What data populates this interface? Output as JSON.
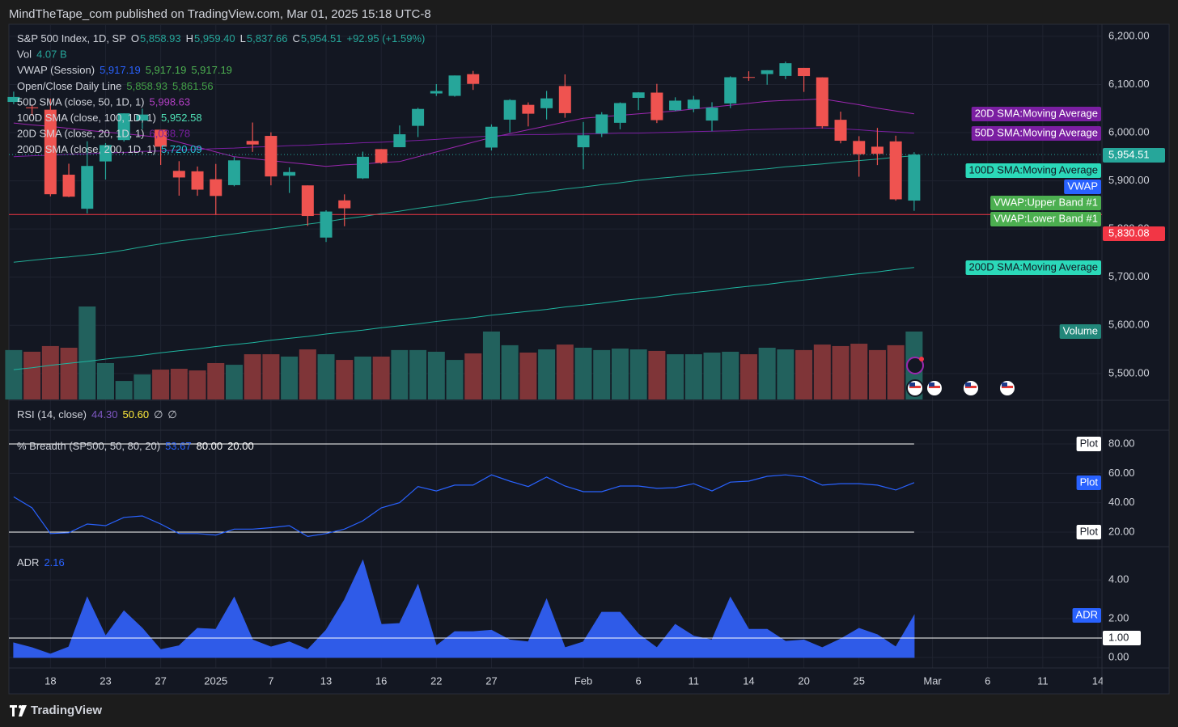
{
  "header": {
    "attribution": "MindTheTape_com published on TradingView.com, Mar 01, 2025 15:18 UTC-8"
  },
  "footer": {
    "brand": "TradingView"
  },
  "rsi": {
    "legend": [
      {
        "label": "RSI (14, close)",
        "values": [
          {
            "text": "44.30",
            "color": "#7e57c2"
          },
          {
            "text": "50.60",
            "color": "#ffeb3b"
          },
          {
            "text": "∅",
            "color": "#d1d4dc"
          },
          {
            "text": "∅",
            "color": "#d1d4dc"
          }
        ]
      }
    ]
  },
  "chart_data": [
    {
      "type": "candlestick",
      "legend": [
        {
          "label": "S&P 500 Index, 1D, SP",
          "values": [
            {
              "prefix": "O",
              "text": "5,858.93",
              "color": "#26a69a"
            },
            {
              "prefix": "H",
              "text": "5,959.40",
              "color": "#26a69a"
            },
            {
              "prefix": "L",
              "text": "5,837.66",
              "color": "#26a69a"
            },
            {
              "prefix": "C",
              "text": "5,954.51",
              "color": "#26a69a"
            },
            {
              "text": "+92.95 (+1.59%)",
              "color": "#26a69a"
            }
          ]
        },
        {
          "label": "Vol",
          "values": [
            {
              "text": "4.07 B",
              "color": "#26a69a"
            }
          ]
        },
        {
          "label": "VWAP (Session)",
          "values": [
            {
              "text": "5,917.19",
              "color": "#2962ff"
            },
            {
              "text": "5,917.19",
              "color": "#4caf50"
            },
            {
              "text": "5,917.19",
              "color": "#4caf50"
            }
          ]
        },
        {
          "label": "Open/Close Daily Line",
          "values": [
            {
              "text": "5,858.93",
              "color": "#43a047"
            },
            {
              "text": "5,861.56",
              "color": "#43a047"
            }
          ]
        },
        {
          "label": "50D SMA (close, 50, 1D, 1)",
          "values": [
            {
              "text": "5,998.63",
              "color": "#b23fc4"
            }
          ]
        },
        {
          "label": "100D SMA (close, 100, 1D, 1)",
          "values": [
            {
              "text": "5,952.58",
              "color": "#4fe0b6"
            }
          ]
        },
        {
          "label": "20D SMA (close, 20, 1D, 1)",
          "values": [
            {
              "text": "6,038.78",
              "color": "#7b1fa2"
            }
          ]
        },
        {
          "label": "200D SMA (close, 200, 1D, 1)",
          "values": [
            {
              "text": "5,720.09",
              "color": "#26c6da"
            }
          ]
        }
      ],
      "xlim": [
        -0.26,
        59.22
      ],
      "xticks": [
        {
          "value": 2,
          "label": "18"
        },
        {
          "value": 5,
          "label": "23"
        },
        {
          "value": 8,
          "label": "27"
        },
        {
          "value": 11,
          "label": "2025"
        },
        {
          "value": 14,
          "label": "7"
        },
        {
          "value": 17,
          "label": "13"
        },
        {
          "value": 20,
          "label": "16"
        },
        {
          "value": 23,
          "label": "22"
        },
        {
          "value": 26,
          "label": "27"
        },
        {
          "value": 31,
          "label": "Feb"
        },
        {
          "value": 34,
          "label": "6"
        },
        {
          "value": 37,
          "label": "11"
        },
        {
          "value": 40,
          "label": "14"
        },
        {
          "value": 43,
          "label": "20"
        },
        {
          "value": 46,
          "label": "25"
        },
        {
          "value": 50,
          "label": "Mar"
        },
        {
          "value": 53,
          "label": "6"
        },
        {
          "value": 56,
          "label": "11"
        },
        {
          "value": 59,
          "label": "14"
        }
      ],
      "ylim": [
        5446,
        6220
      ],
      "yticks": [
        {
          "value": 5500,
          "label": "5,500.00"
        },
        {
          "value": 5600,
          "label": "5,600.00"
        },
        {
          "value": 5700,
          "label": "5,700.00"
        },
        {
          "value": 5800,
          "label": "5,800.00"
        },
        {
          "value": 5900,
          "label": "5,900.00"
        },
        {
          "value": 6000,
          "label": "6,000.00"
        },
        {
          "value": 6100,
          "label": "6,100.00"
        },
        {
          "value": 6200,
          "label": "6,200.00"
        }
      ],
      "grid": true,
      "up_color": "#26a69a",
      "down_color": "#ef5350",
      "open": [
        6063.79,
        6052.55,
        6047.65,
        5912.71,
        5842.0,
        5940.25,
        5984.63,
        6024.97,
        6006.17,
        5920.67,
        5919.74,
        5903.26,
        5891.07,
        5982.81,
        5993.26,
        5910.66,
        5890.52,
        5782.17,
        5859.42,
        5905.19,
        5965.81,
        5969.79,
        6014.12,
        6081.39,
        6076.32,
        6121.43,
        5969.04,
        6026.97,
        6057.7,
        6050.75,
        6096.79,
        5969.65,
        5998.14,
        6020.45,
        6072.22,
        6083.13,
        6046.4,
        6049.32,
        6025.08,
        6060.59,
        6115.52,
        6121.6,
        6117.76,
        6134.5,
        6114.82,
        6026.69,
        5982.73,
        5970.87,
        5981.88,
        5858.93
      ],
      "high": [
        6085.19,
        6057.68,
        6070.67,
        5935.52,
        5982.06,
        5978.25,
        6040.1,
        6049.75,
        6006.17,
        5940.79,
        5929.74,
        5935.09,
        5949.34,
        6021.04,
        6000.68,
        5927.89,
        5890.52,
        5838.89,
        5871.92,
        5960.61,
        5965.99,
        6014.96,
        6051.51,
        6100.81,
        6118.73,
        6128.18,
        6017.17,
        6069.4,
        6062.83,
        6086.64,
        6120.91,
        6022.13,
        6042.48,
        6062.86,
        6084.03,
        6101.28,
        6073.38,
        6076.28,
        6063.18,
        6116.91,
        6127.47,
        6129.63,
        6147.43,
        6134.5,
        6114.82,
        6043.65,
        5992.65,
        6009.82,
        5993.69,
        5959.4
      ],
      "low": [
        6059.14,
        6035.19,
        5867.79,
        5866.07,
        5832.3,
        5902.57,
        5981.44,
        6007.37,
        5932.95,
        5869.16,
        5868.86,
        5829.53,
        5888.66,
        5960.01,
        5890.68,
        5874.78,
        5806.43,
        5773.01,
        5805.71,
        5903.76,
        5934.92,
        5969.79,
        5990.89,
        6076.13,
        6074.67,
        6088.74,
        5962.92,
        6000.22,
        6012.96,
        6027.46,
        6030.93,
        5923.93,
        5990.87,
        6007.06,
        6046.83,
        6019.96,
        6044.84,
        6042.34,
        6003.0,
        6051.0,
        6107.62,
        6099.51,
        6111.15,
        6084.59,
        6008.56,
        5977.83,
        5908.49,
        5932.69,
        5858.78,
        5837.66
      ],
      "close": [
        6074.08,
        6050.61,
        5872.16,
        5867.08,
        5930.85,
        5974.07,
        6040.04,
        6037.59,
        5970.84,
        5906.94,
        5881.63,
        5868.55,
        5942.47,
        5975.38,
        5909.03,
        5918.25,
        5827.04,
        5836.22,
        5842.91,
        5949.91,
        5937.34,
        5996.66,
        6049.24,
        6086.37,
        6118.71,
        6101.24,
        6012.28,
        6067.7,
        6039.31,
        6071.17,
        6040.53,
        5994.57,
        6037.88,
        6061.48,
        6083.57,
        6025.99,
        6066.44,
        6068.5,
        6051.97,
        6115.07,
        6114.63,
        6129.58,
        6144.15,
        6117.52,
        6013.13,
        5983.25,
        5955.25,
        5956.06,
        5861.57,
        5954.51
      ],
      "volume": {
        "up_color": "#22615d",
        "down_color": "#7f3538",
        "values": [
          2.96,
          2.86,
          3.2,
          3.1,
          5.57,
          2.18,
          1.11,
          1.5,
          1.79,
          1.84,
          1.74,
          2.18,
          2.08,
          2.71,
          2.71,
          2.57,
          3.0,
          2.71,
          2.37,
          2.57,
          2.57,
          2.96,
          2.96,
          2.86,
          2.37,
          2.76,
          4.07,
          3.25,
          2.81,
          3.0,
          3.29,
          3.1,
          2.96,
          3.05,
          3.0,
          2.91,
          2.71,
          2.71,
          2.81,
          2.86,
          2.71,
          3.1,
          3.0,
          2.96,
          3.29,
          3.2,
          3.34,
          2.96,
          3.25,
          4.07
        ]
      },
      "lines": [
        {
          "color": "#9c27b0",
          "values": [
            6020,
            6016,
            6013,
            6009,
            6005,
            6001,
            5998,
            5994,
            5990,
            5980,
            5970,
            5960,
            5950,
            5946,
            5942,
            5938,
            5934,
            5930,
            5933,
            5935,
            5938,
            5940,
            5950,
            5960,
            5970,
            5980,
            5990,
            5998,
            6006,
            6014,
            6022,
            6030,
            6033,
            6036,
            6039,
            6042,
            6045,
            6049,
            6053,
            6057,
            6061,
            6065,
            6067,
            6068,
            6070,
            6064,
            6058,
            6051,
            6045,
            6039
          ]
        },
        {
          "color": "#7b1fa2",
          "values": [
            5950,
            5952,
            5953,
            5955,
            5956,
            5958,
            5959,
            5961,
            5962,
            5964,
            5965,
            5967,
            5968,
            5970,
            5971,
            5973,
            5974,
            5976,
            5977,
            5979,
            5980,
            5982,
            5984,
            5986,
            5989,
            5991,
            5993,
            5995,
            5996,
            5996,
            5997,
            5997,
            5998,
            5999,
            5999,
            6000,
            6001,
            6002,
            6003,
            6004,
            6006,
            6007,
            6008,
            6009,
            6010,
            6008,
            6006,
            6003,
            6001,
            5999
          ]
        },
        {
          "color": "#22ab94",
          "values": [
            5731,
            5735,
            5739,
            5742,
            5746,
            5750,
            5756,
            5763,
            5769,
            5775,
            5780,
            5785,
            5790,
            5795,
            5800,
            5805,
            5810,
            5815,
            5821,
            5826,
            5832,
            5837,
            5843,
            5848,
            5854,
            5859,
            5865,
            5869,
            5874,
            5878,
            5883,
            5887,
            5892,
            5896,
            5901,
            5905,
            5908,
            5912,
            5915,
            5918,
            5922,
            5925,
            5929,
            5932,
            5935,
            5939,
            5942,
            5945,
            5949,
            5952
          ]
        },
        {
          "color": "#1fb5a0",
          "values": [
            5508,
            5512,
            5517,
            5521,
            5525,
            5530,
            5534,
            5538,
            5543,
            5547,
            5551,
            5556,
            5560,
            5564,
            5569,
            5573,
            5577,
            5582,
            5586,
            5590,
            5595,
            5599,
            5603,
            5608,
            5612,
            5616,
            5621,
            5625,
            5629,
            5633,
            5638,
            5642,
            5646,
            5651,
            5655,
            5659,
            5664,
            5668,
            5672,
            5677,
            5681,
            5685,
            5690,
            5694,
            5698,
            5703,
            5707,
            5711,
            5716,
            5720
          ]
        }
      ],
      "price_lines": [
        {
          "value": 5954.51,
          "label": "5,954.51",
          "color": "#26a69a",
          "style": "dotted"
        },
        {
          "value": 5830.08,
          "label": "5,830.08",
          "color": "#f23645",
          "style": "solid"
        }
      ],
      "tags": [
        {
          "text": "20D SMA:Moving Average",
          "bg": "#7b1fa2",
          "fg": "#ffffff"
        },
        {
          "text": "50D SMA:Moving Average",
          "bg": "#7b1fa2",
          "fg": "#ffffff"
        },
        {
          "text": "100D SMA:Moving Average",
          "bg": "#2bd9b9",
          "fg": "#131722"
        },
        {
          "text": "VWAP",
          "bg": "#2962ff",
          "fg": "#ffffff"
        },
        {
          "text": "VWAP:Upper Band #1",
          "bg": "#4caf50",
          "fg": "#ffffff"
        },
        {
          "text": "VWAP:Lower Band #1",
          "bg": "#4caf50",
          "fg": "#ffffff"
        },
        {
          "text": "200D SMA:Moving Average",
          "bg": "#2bd9b9",
          "fg": "#131722"
        },
        {
          "text": "Volume",
          "bg": "#22877a",
          "fg": "#ffffff"
        }
      ]
    },
    {
      "type": "line",
      "legend": [
        {
          "label": "% Breadth (SP500, 50, 80, 20)",
          "values": [
            {
              "text": "53.67",
              "color": "#2962ff"
            },
            {
              "text": "80.00",
              "color": "#ffffff"
            },
            {
              "text": "20.00",
              "color": "#ffffff"
            }
          ]
        }
      ],
      "color": "#2962ff",
      "values": [
        44,
        36.5,
        19,
        19.5,
        25.5,
        24.4,
        30,
        31,
        25.5,
        19,
        19,
        18,
        22,
        22,
        23,
        24.4,
        17,
        19,
        22,
        27.7,
        36.5,
        40,
        51,
        48,
        52,
        52,
        59,
        54.7,
        51,
        57.5,
        51.4,
        47.5,
        47.5,
        51.4,
        51.4,
        49.8,
        50.3,
        53,
        48,
        54,
        54.7,
        58,
        59,
        57.5,
        52,
        53,
        53,
        52,
        48.7,
        53.67
      ],
      "ylim": [
        11.7,
        90.5
      ],
      "yticks": [
        {
          "value": 20,
          "label": "20.00"
        },
        {
          "value": 40,
          "label": "40.00"
        },
        {
          "value": 60,
          "label": "60.00"
        },
        {
          "value": 80,
          "label": "80.00"
        }
      ],
      "grid": true,
      "levels": [
        80,
        20
      ],
      "tags": [
        {
          "text": "Plot",
          "bg": "#ffffff",
          "fg": "#131722"
        },
        {
          "text": "Plot",
          "bg": "#2962ff",
          "fg": "#ffffff"
        },
        {
          "text": "Plot",
          "bg": "#ffffff",
          "fg": "#131722"
        }
      ]
    },
    {
      "type": "area",
      "legend": [
        {
          "label": "ADR",
          "values": [
            {
              "text": "2.16",
              "color": "#2962ff"
            }
          ]
        }
      ],
      "color": "#2f5be8",
      "values": [
        0.75,
        0.5,
        0.17,
        0.54,
        3.1,
        1.1,
        2.4,
        1.5,
        0.4,
        0.6,
        1.5,
        1.45,
        3.1,
        0.9,
        0.54,
        0.8,
        0.4,
        1.4,
        2.96,
        5.0,
        1.7,
        1.75,
        3.75,
        0.6,
        1.33,
        1.33,
        1.4,
        0.9,
        0.8,
        3.0,
        0.5,
        0.8,
        2.33,
        2.33,
        1.2,
        0.5,
        1.7,
        1.1,
        0.9,
        3.1,
        1.45,
        1.45,
        0.83,
        0.9,
        0.5,
        0.95,
        1.5,
        1.17,
        0.54,
        2.16
      ],
      "ylim": [
        -0.5,
        5.63
      ],
      "yticks": [
        {
          "value": 0,
          "label": "0.00"
        },
        {
          "value": 2,
          "label": "2.00"
        },
        {
          "value": 4,
          "label": "4.00"
        }
      ],
      "grid": true,
      "reference": {
        "value": 1,
        "label": "1.00"
      },
      "tags": [
        {
          "text": "ADR",
          "bg": "#2962ff",
          "fg": "#ffffff"
        }
      ]
    }
  ]
}
